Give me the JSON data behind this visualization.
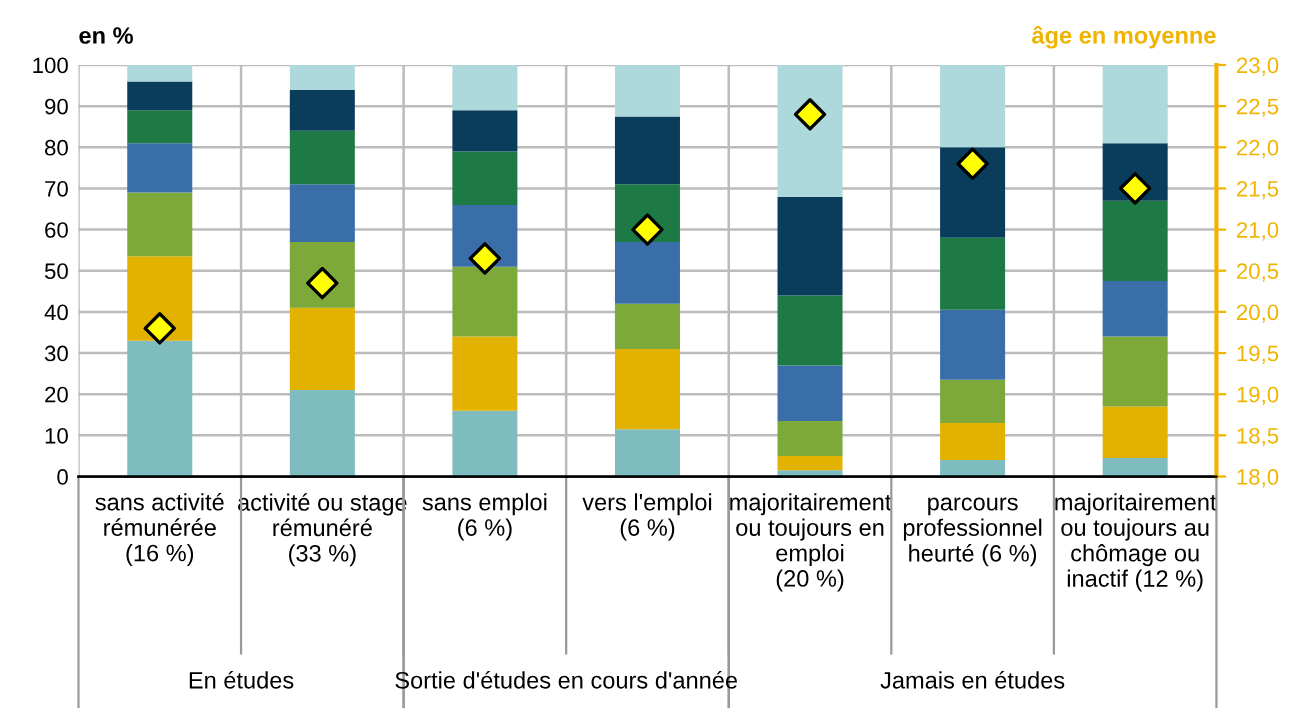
{
  "chart_data": {
    "type": "bar",
    "stacked": true,
    "ylabel": "en %",
    "y2label": "âge en moyenne",
    "categories": [
      "sans activité\nrémunérée\n(16 %)",
      "activité ou stage\nrémunéré\n(33 %)",
      "sans emploi\n(6 %)",
      "vers l'emploi\n(6 %)",
      "majoritairement\nou toujours en\nemploi\n(20 %)",
      "parcours\nprofessionnel\nheurté (6 %)",
      "majoritairement\nou toujours au\nchômage ou\ninactif (12 %)"
    ],
    "series": [
      {
        "color": "#7fbcbf",
        "values": [
          33,
          21,
          16,
          11.5,
          1.5,
          4,
          4.5
        ]
      },
      {
        "color": "#e3b100",
        "values": [
          20.5,
          20,
          18,
          19.5,
          3.5,
          9,
          12.5
        ]
      },
      {
        "color": "#7da83a",
        "values": [
          15.5,
          16,
          17,
          11,
          8.5,
          10.5,
          17
        ]
      },
      {
        "color": "#3a6ea8",
        "values": [
          12,
          14,
          15,
          15,
          13.5,
          17,
          13.5
        ]
      },
      {
        "color": "#1e7a45",
        "values": [
          8,
          13,
          13,
          14,
          17,
          17.5,
          19.5
        ]
      },
      {
        "color": "#0a3d5c",
        "values": [
          7,
          10,
          10,
          16.5,
          24,
          22,
          14
        ]
      },
      {
        "color": "#add8dc",
        "values": [
          4,
          6,
          11,
          12.5,
          32,
          20,
          19
        ]
      },
      {
        "type": "scatter",
        "axis": "y2",
        "marker": "diamond",
        "color": "#ffff00",
        "values": [
          19.8,
          20.35,
          20.65,
          21.0,
          22.4,
          21.8,
          21.5
        ]
      }
    ],
    "ylim": [
      0,
      100
    ],
    "yticks": [
      0,
      10,
      20,
      30,
      40,
      50,
      60,
      70,
      80,
      90,
      100
    ],
    "y2lim": [
      18,
      23
    ],
    "y2ticks": [
      {
        "value": 18,
        "label": "18,0"
      },
      {
        "value": 18.5,
        "label": "18,5"
      },
      {
        "value": 19,
        "label": "19,0"
      },
      {
        "value": 19.5,
        "label": "19,5"
      },
      {
        "value": 20,
        "label": "20,0"
      },
      {
        "value": 20.5,
        "label": "20,5"
      },
      {
        "value": 21,
        "label": "21,0"
      },
      {
        "value": 21.5,
        "label": "21,5"
      },
      {
        "value": 22,
        "label": "22,0"
      },
      {
        "value": 22.5,
        "label": "22,5"
      },
      {
        "value": 23,
        "label": "23,0"
      }
    ],
    "grid": true,
    "legend": false,
    "annotations": [
      "En études",
      "Sortie d'études en cours d'année",
      "Jamais en études"
    ]
  }
}
